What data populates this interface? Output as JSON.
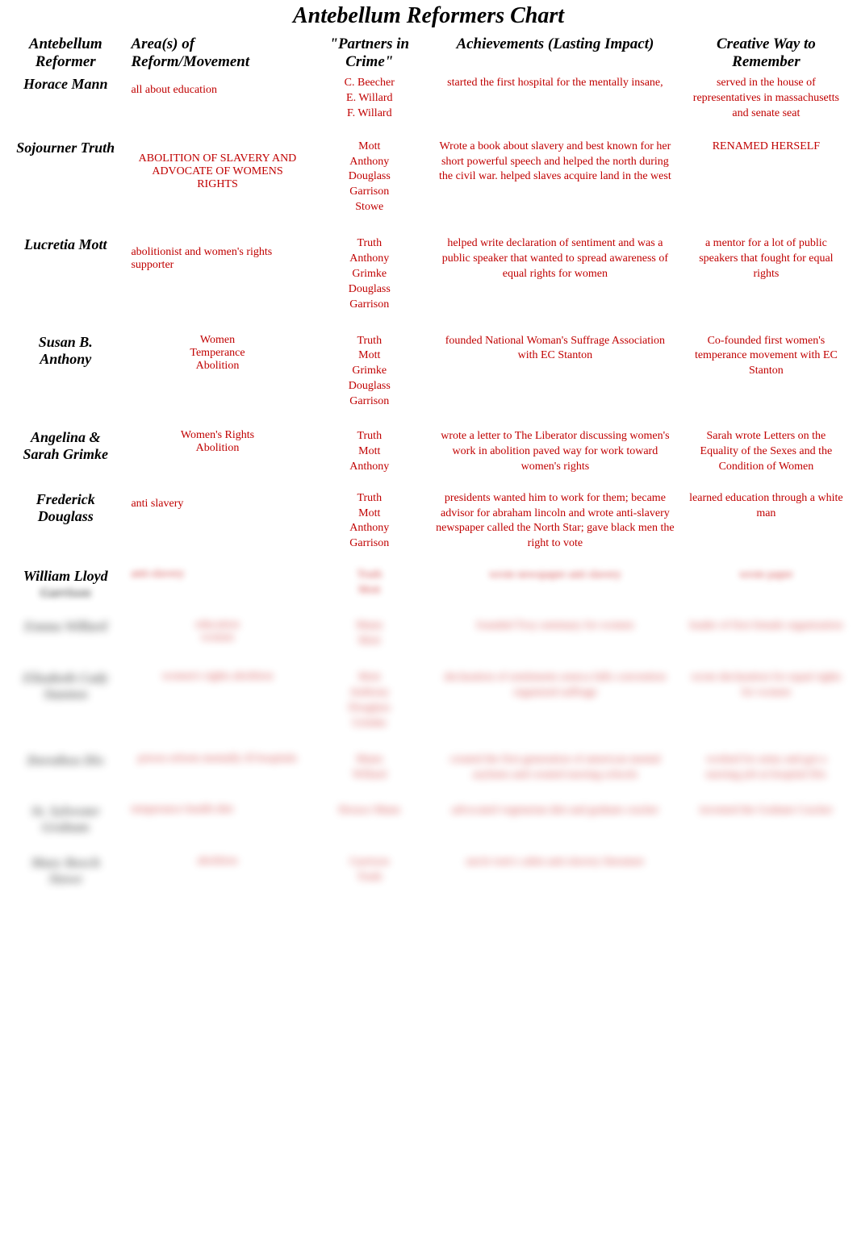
{
  "title": "Antebellum Reformers Chart",
  "headers": {
    "col1": "Antebellum Reformer",
    "col2": "Area(s) of Reform/Movement",
    "col3": "\"Partners in Crime\"",
    "col4": "Achievements (Lasting Impact)",
    "col5": "Creative Way to Remember"
  },
  "rows": [
    {
      "reformer": "Horace Mann",
      "area": "all about education",
      "partners": "C. Beecher\nE. Willard\nF. Willard",
      "achievements": "started the first hospital for the mentally insane,",
      "creative": "served in the house of representatives in massachusetts and senate seat"
    },
    {
      "reformer": "Sojourner Truth",
      "area": "ABOLITION OF SLAVERY AND ADVOCATE OF WOMENS RIGHTS",
      "partners": "Mott\nAnthony\nDouglass\nGarrison\nStowe",
      "achievements": "Wrote a book about slavery and best known for her short powerful speech and helped the north during the civil war. helped slaves acquire land in the west",
      "creative": "RENAMED HERSELF"
    },
    {
      "reformer": "Lucretia Mott",
      "area": "abolitionist and women's rights supporter",
      "partners": "Truth\nAnthony\nGrimke\nDouglass\nGarrison",
      "achievements": "helped write declaration of sentiment and was a public speaker that wanted to spread awareness of equal rights for women",
      "creative": "a mentor for a lot of public speakers that fought for equal rights"
    },
    {
      "reformer": "Susan B. Anthony",
      "area": "Women\nTemperance\nAbolition",
      "partners": "Truth\nMott\nGrimke\nDouglass\nGarrison",
      "achievements": "founded National Woman's Suffrage Association with EC Stanton",
      "creative": "Co-founded first women's temperance movement with EC Stanton"
    },
    {
      "reformer": "Angelina & Sarah Grimke",
      "area": "Women's Rights\nAbolition",
      "partners": "Truth\nMott\nAnthony",
      "achievements": "wrote a letter to The Liberator discussing women's work in abolition paved way for work toward women's rights",
      "creative": "Sarah wrote Letters on the Equality of the Sexes and the Condition of Women"
    },
    {
      "reformer": "Frederick Douglass",
      "area": "anti slavery",
      "partners": "Truth\nMott\nAnthony\nGarrison",
      "achievements": "presidents wanted him to work for them; became advisor for abraham lincoln and wrote anti-slavery newspaper called the North Star; gave black men the right to vote",
      "creative": "learned education through a white man"
    },
    {
      "reformer": "William Lloyd",
      "area": "",
      "partners": "",
      "achievements": "",
      "creative": ""
    }
  ],
  "blurred_rows": [
    {
      "reformer": "Garrison",
      "area": "anti-slavery",
      "partners": "Truth\nMott",
      "achievements": "wrote newspaper anti slavery",
      "creative": "wrote paper"
    },
    {
      "reformer": "Emma Willard",
      "area": "education\nwomen",
      "partners": "Mann\nMott",
      "achievements": "founded Troy seminary for women",
      "creative": "leader of first female organization"
    },
    {
      "reformer": "Elizabeth Cady Stanton",
      "area": "women's rights abolition",
      "partners": "Mott\nAnthony\nDouglass\nGrimke",
      "achievements": "declaration of sentiments seneca falls convention organized suffrage",
      "creative": "wrote declaration for equal rights for women"
    },
    {
      "reformer": "Dorothea Dix",
      "area": "prison reform mentally ill hospitals",
      "partners": "Mann\nWillard",
      "achievements": "created the first generation of american mental asylums and created nursing schools",
      "creative": "worked for army and got a nursing job at hospital Dix"
    },
    {
      "reformer": "St. Sylvester Graham",
      "area": "temperance health diet",
      "partners": "Horace Mann",
      "achievements": "advocated vegetarian diet and graham cracker",
      "creative": "invented the Graham Cracker"
    },
    {
      "reformer": "Mary Beech Stowe",
      "area": "abolition",
      "partners": "Garrison\nTruth",
      "achievements": "uncle tom's cabin anti-slavery literature",
      "creative": ""
    }
  ]
}
